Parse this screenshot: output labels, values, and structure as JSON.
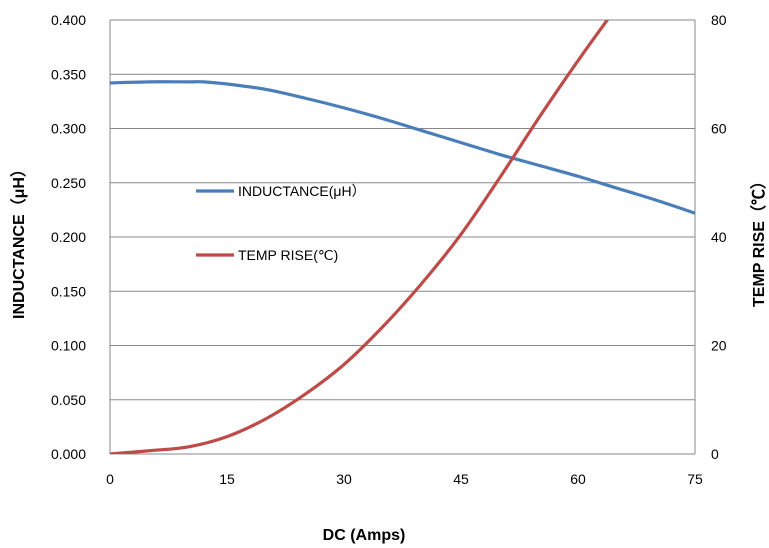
{
  "chart_data": {
    "type": "line",
    "xlabel": "DC (Amps)",
    "ylabel": "INDUCTANCE（μH）",
    "y2label": "TEMP RISE（℃）",
    "xlim": [
      0,
      75
    ],
    "ylim": [
      0,
      0.4
    ],
    "y2lim": [
      0,
      80
    ],
    "xticks": [
      "0",
      "15",
      "30",
      "45",
      "60",
      "75"
    ],
    "yticks": [
      "0.000",
      "0.050",
      "0.100",
      "0.150",
      "0.200",
      "0.250",
      "0.300",
      "0.350",
      "0.400"
    ],
    "y2ticks": [
      "0",
      "20",
      "40",
      "60",
      "80"
    ],
    "grid": true,
    "legend_position": "center-left",
    "series": [
      {
        "name": "INDUCTANCE(μH）",
        "axis": "left",
        "color": "#4a7ebb",
        "x": [
          0,
          5,
          10,
          12,
          15,
          20,
          25,
          30,
          35,
          40,
          45,
          50,
          55,
          60,
          65,
          70,
          75
        ],
        "y": [
          0.342,
          0.343,
          0.343,
          0.343,
          0.341,
          0.336,
          0.328,
          0.319,
          0.309,
          0.298,
          0.287,
          0.276,
          0.266,
          0.256,
          0.245,
          0.234,
          0.222
        ]
      },
      {
        "name": "TEMP RISE(℃)",
        "axis": "right",
        "color": "#be4b48",
        "x": [
          0,
          5,
          10,
          15,
          20,
          25,
          30,
          35,
          40,
          45,
          50,
          55,
          60,
          64
        ],
        "y": [
          0,
          0.6,
          1.3,
          3.2,
          6.5,
          11,
          16.5,
          23.5,
          31.5,
          40.5,
          51,
          62,
          72.5,
          80.5
        ]
      }
    ]
  }
}
